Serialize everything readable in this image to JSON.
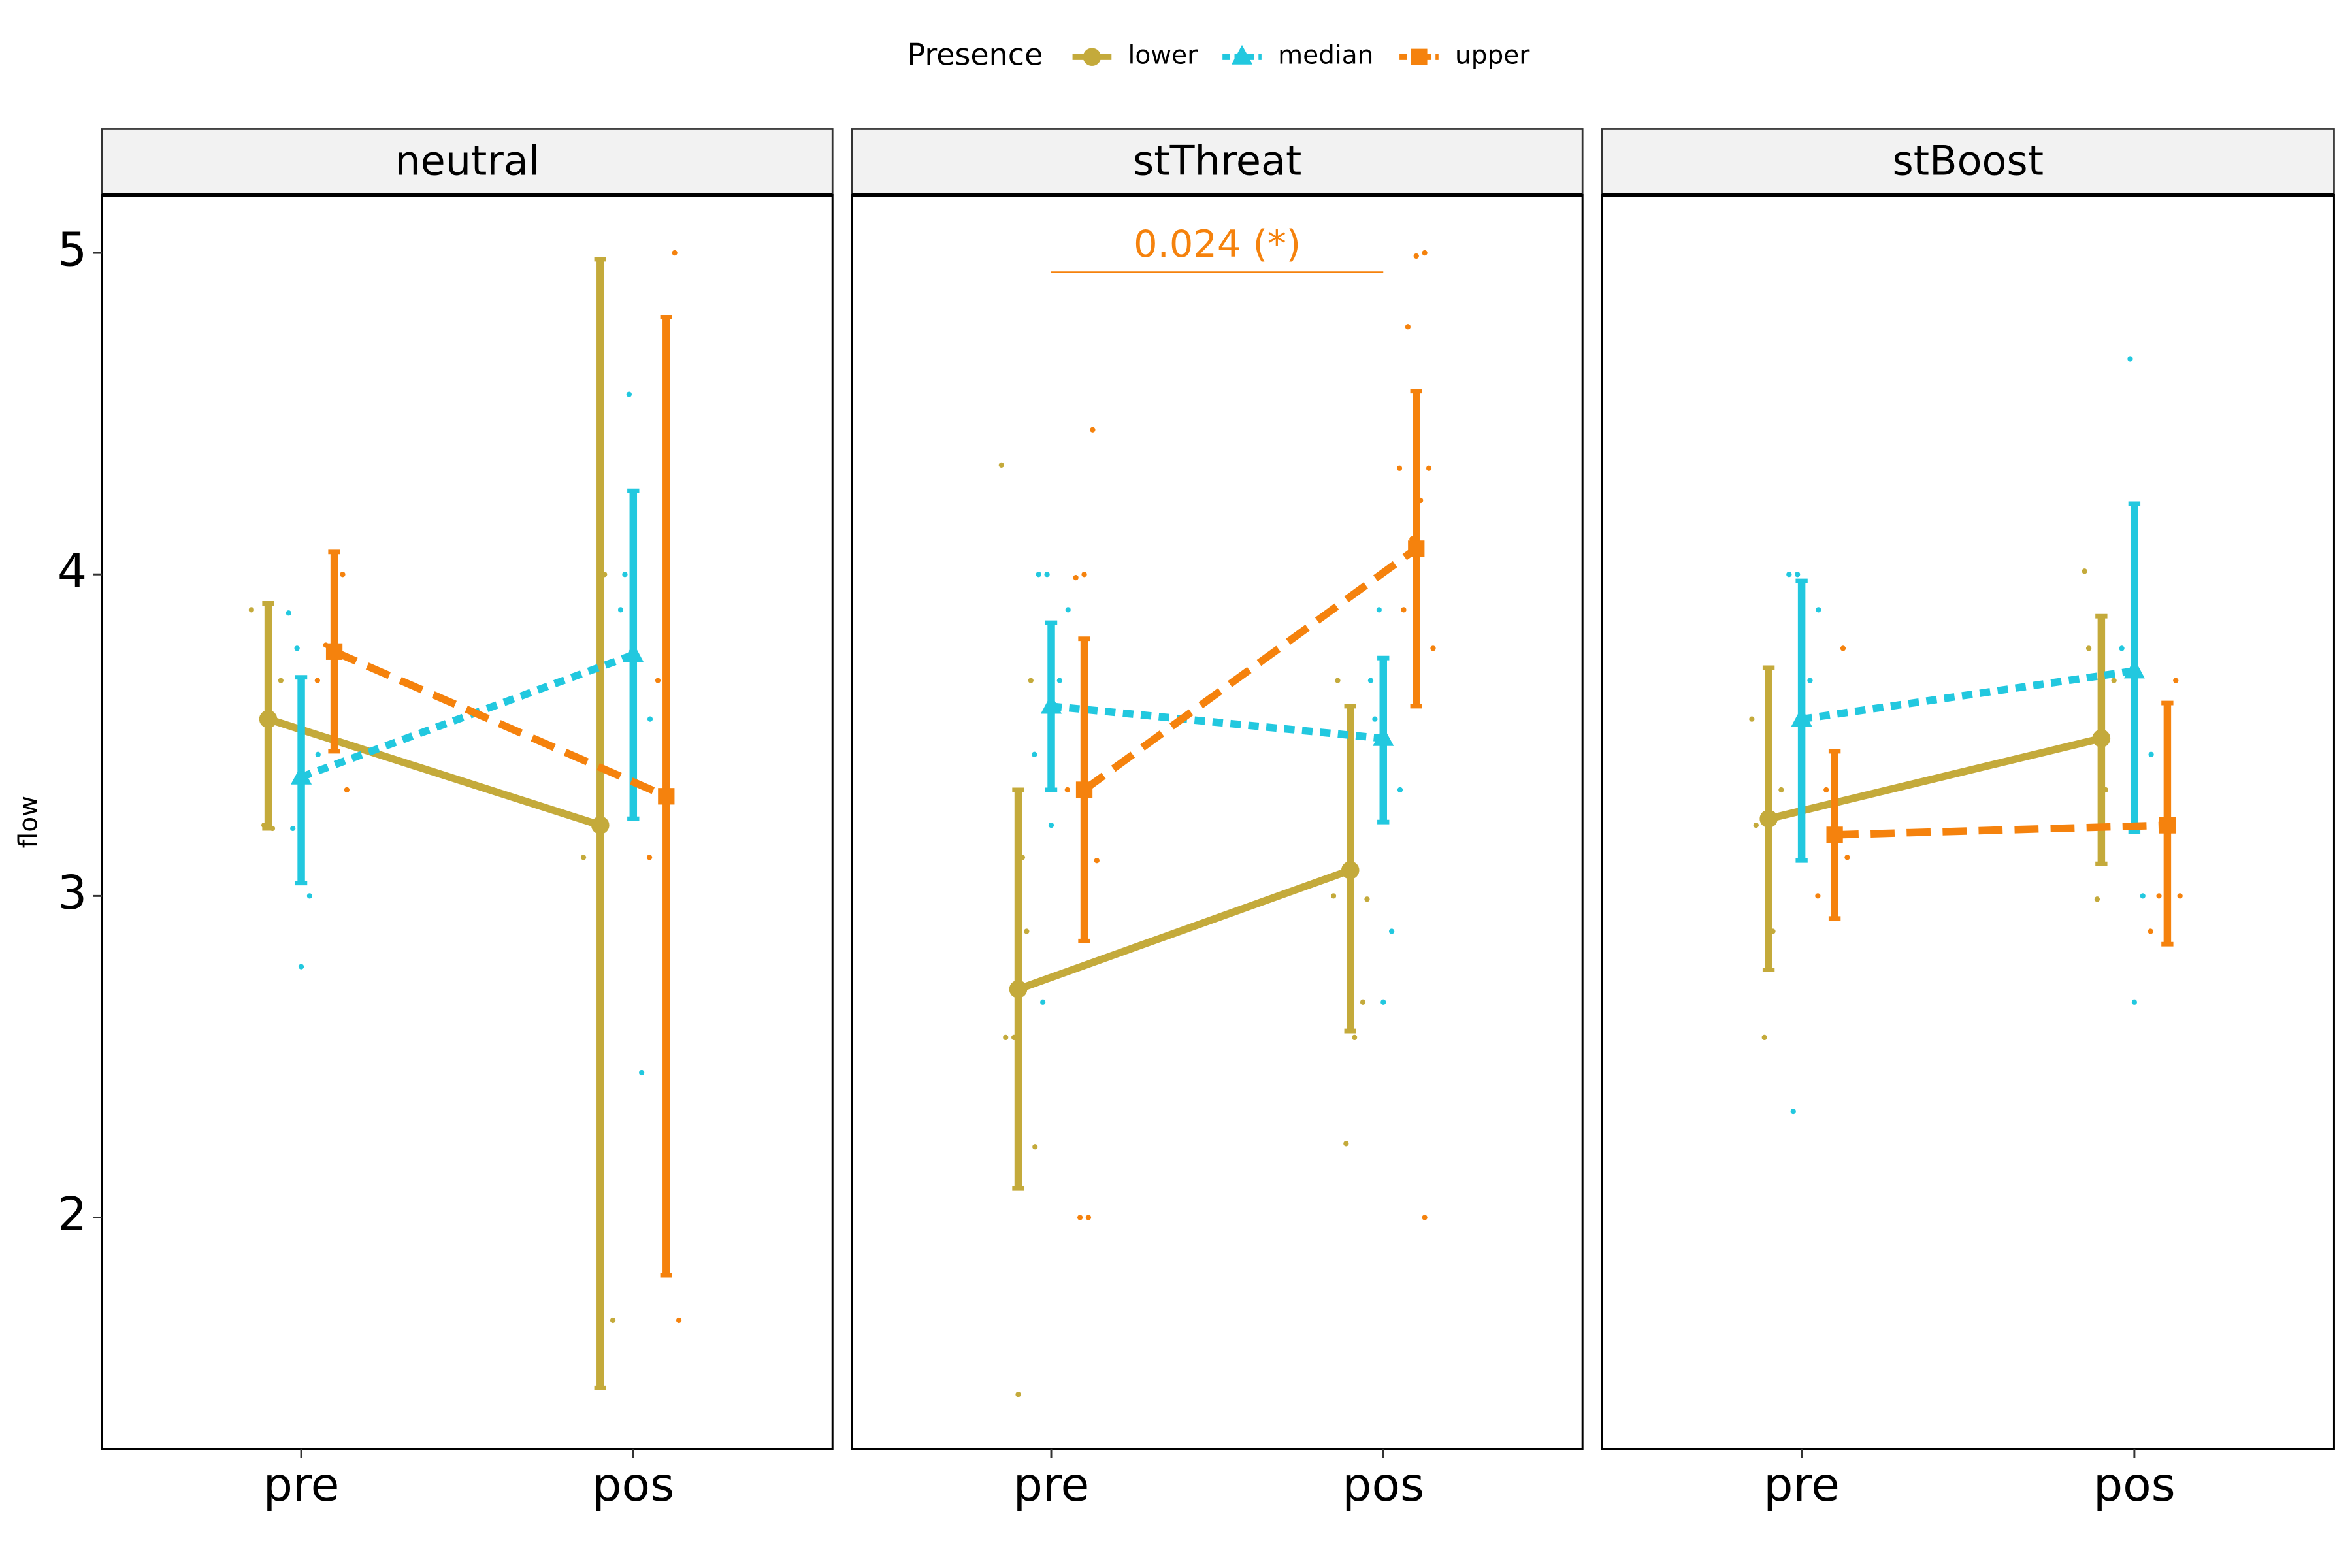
{
  "chart_data": [
    {
      "type": "line",
      "title": "neutral",
      "legend_title": "Presence",
      "y_label": "flow",
      "categories": [
        "pre",
        "pos"
      ],
      "ylim": [
        1.28,
        5.18
      ],
      "yticks": [
        2,
        3,
        4,
        5
      ],
      "series": [
        {
          "name": "lower",
          "color": "#c4aa3b",
          "values": [
            3.55,
            3.22
          ],
          "lower": [
            3.21,
            1.47
          ],
          "upper": [
            3.91,
            4.98
          ],
          "points": [
            [
              3.89,
              3.67,
              3.21,
              3.22
            ],
            [
              3.12,
              1.68,
              4.0,
              3.22
            ]
          ]
        },
        {
          "name": "median",
          "color": "#22c8df",
          "values": [
            3.37,
            3.75
          ],
          "lower": [
            3.04,
            3.24
          ],
          "upper": [
            3.68,
            4.26
          ],
          "points": [
            [
              3.77,
              3.88,
              3.44,
              3.0,
              2.78,
              3.21
            ],
            [
              4.56,
              3.89,
              3.55,
              2.45,
              3.33,
              4.0
            ]
          ]
        },
        {
          "name": "upper",
          "color": "#f5820d",
          "values": [
            3.76,
            3.31
          ],
          "lower": [
            3.45,
            1.82
          ],
          "upper": [
            4.07,
            4.8
          ],
          "points": [
            [
              4.0,
              3.78,
              3.78,
              3.67,
              3.33
            ],
            [
              5.0,
              4.0,
              3.67,
              3.12,
              1.68
            ]
          ]
        }
      ]
    },
    {
      "type": "line",
      "title": "stThreat",
      "categories": [
        "pre",
        "pos"
      ],
      "ylim": [
        1.28,
        5.18
      ],
      "yticks": [
        2,
        3,
        4,
        5
      ],
      "annotation": {
        "text": "0.024 (*)",
        "y": 4.94,
        "color": "#f5820d"
      },
      "series": [
        {
          "name": "lower",
          "color": "#c4aa3b",
          "values": [
            2.71,
            3.08
          ],
          "lower": [
            2.09,
            2.58
          ],
          "upper": [
            3.33,
            3.59
          ],
          "points": [
            [
              4.34,
              3.67,
              3.12,
              2.56,
              2.56,
              2.22,
              2.89,
              1.45
            ],
            [
              3.0,
              2.67,
              2.56,
              2.23,
              3.67,
              2.99
            ]
          ]
        },
        {
          "name": "median",
          "color": "#22c8df",
          "values": [
            3.59,
            3.49
          ],
          "lower": [
            3.33,
            3.23
          ],
          "upper": [
            3.85,
            3.74
          ],
          "points": [
            [
              4.0,
              4.0,
              3.89,
              3.67,
              3.22,
              2.67,
              3.44
            ],
            [
              3.89,
              3.67,
              3.33,
              2.89,
              2.67,
              3.55
            ]
          ]
        },
        {
          "name": "upper",
          "color": "#f5820d",
          "values": [
            3.33,
            4.08
          ],
          "lower": [
            2.86,
            3.59
          ],
          "upper": [
            3.8,
            4.57
          ],
          "points": [
            [
              4.45,
              4.0,
              3.99,
              3.33,
              3.11,
              2.0,
              2.0
            ],
            [
              5.0,
              4.99,
              4.77,
              4.33,
              4.33,
              4.23,
              4.11,
              3.89,
              3.77,
              2.0
            ]
          ]
        }
      ]
    },
    {
      "type": "line",
      "title": "stBoost",
      "categories": [
        "pre",
        "pos"
      ],
      "ylim": [
        1.28,
        5.18
      ],
      "yticks": [
        2,
        3,
        4,
        5
      ],
      "series": [
        {
          "name": "lower",
          "color": "#c4aa3b",
          "values": [
            3.24,
            3.49
          ],
          "lower": [
            2.77,
            3.1
          ],
          "upper": [
            3.71,
            3.87
          ],
          "points": [
            [
              3.55,
              3.33,
              2.89,
              2.56,
              3.22
            ],
            [
              4.01,
              3.67,
              3.33,
              2.99,
              3.77
            ]
          ]
        },
        {
          "name": "median",
          "color": "#22c8df",
          "values": [
            3.55,
            3.7
          ],
          "lower": [
            3.11,
            3.2
          ],
          "upper": [
            3.98,
            4.22
          ],
          "points": [
            [
              4.0,
              4.0,
              3.89,
              3.67,
              3.22,
              2.33
            ],
            [
              4.67,
              3.77,
              3.44,
              3.0,
              2.67
            ]
          ]
        },
        {
          "name": "upper",
          "color": "#f5820d",
          "values": [
            3.19,
            3.22
          ],
          "lower": [
            2.93,
            2.85
          ],
          "upper": [
            3.45,
            3.6
          ],
          "points": [
            [
              3.77,
              3.44,
              3.33,
              3.0,
              3.12
            ],
            [
              3.67,
              3.11,
              3.0,
              2.89,
              3.0
            ]
          ]
        }
      ]
    }
  ]
}
